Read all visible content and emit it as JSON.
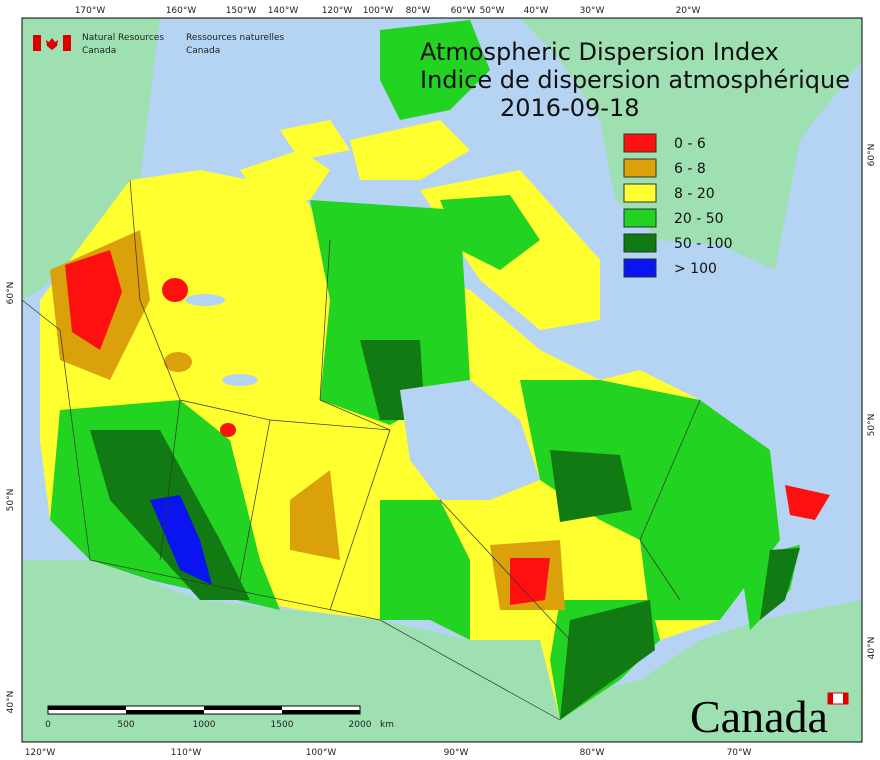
{
  "header": {
    "agency_en": [
      "Natural Resources",
      "Canada"
    ],
    "agency_fr": [
      "Ressources naturelles",
      "Canada"
    ]
  },
  "title": {
    "line1": "Atmospheric Dispersion Index",
    "line2": "Indice de dispersion atmosphérique",
    "date": "2016-09-18"
  },
  "legend": [
    {
      "label": "0 - 6",
      "color": "#ff1010"
    },
    {
      "label": "6 - 8",
      "color": "#dba10a"
    },
    {
      "label": "8 - 20",
      "color": "#ffff30"
    },
    {
      "label": "20 - 50",
      "color": "#22d322"
    },
    {
      "label": "50 - 100",
      "color": "#127a12"
    },
    {
      "label": "> 100",
      "color": "#0a14f0"
    }
  ],
  "graticule": {
    "top": [
      "170°W",
      "160°W",
      "150°W",
      "140°W",
      "120°W",
      "100°W",
      "80°W",
      "60°W",
      "50°W",
      "40°W",
      "30°W",
      "20°W"
    ],
    "bottom": [
      "120°W",
      "110°W",
      "100°W",
      "90°W",
      "80°W",
      "70°W"
    ],
    "left": [
      "60°N",
      "50°N",
      "40°N"
    ],
    "right": [
      "60°N",
      "50°N",
      "40°N"
    ]
  },
  "scale_bar": {
    "ticks": [
      "0",
      "500",
      "1000",
      "1500",
      "2000"
    ],
    "unit": "km"
  },
  "wordmark": "Canada"
}
